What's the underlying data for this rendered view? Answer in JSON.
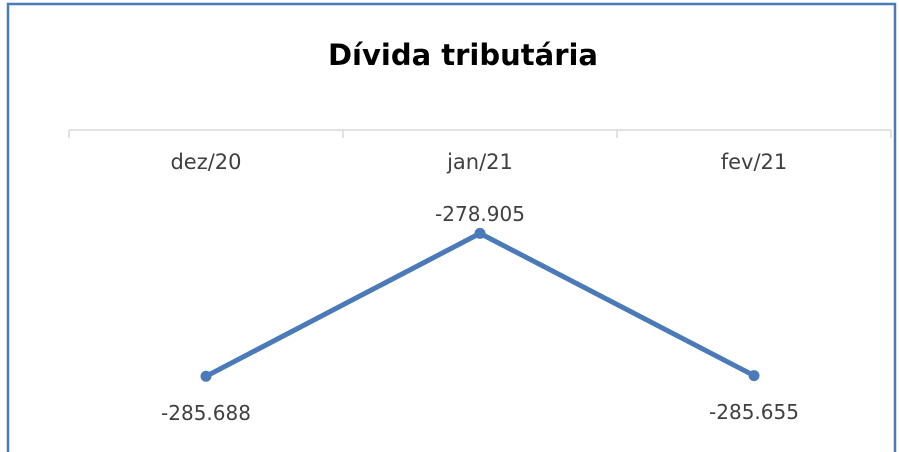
{
  "chart_data": {
    "type": "line",
    "title": "Dívida tributária",
    "categories": [
      "dez/20",
      "jan/21",
      "fev/21"
    ],
    "values": [
      -285688,
      -278905,
      -285655
    ],
    "value_labels": [
      "-285.688",
      "-278.905",
      "-285.655"
    ],
    "color": "#4a7ab8",
    "ylim": [
      -288000,
      -274000
    ]
  }
}
